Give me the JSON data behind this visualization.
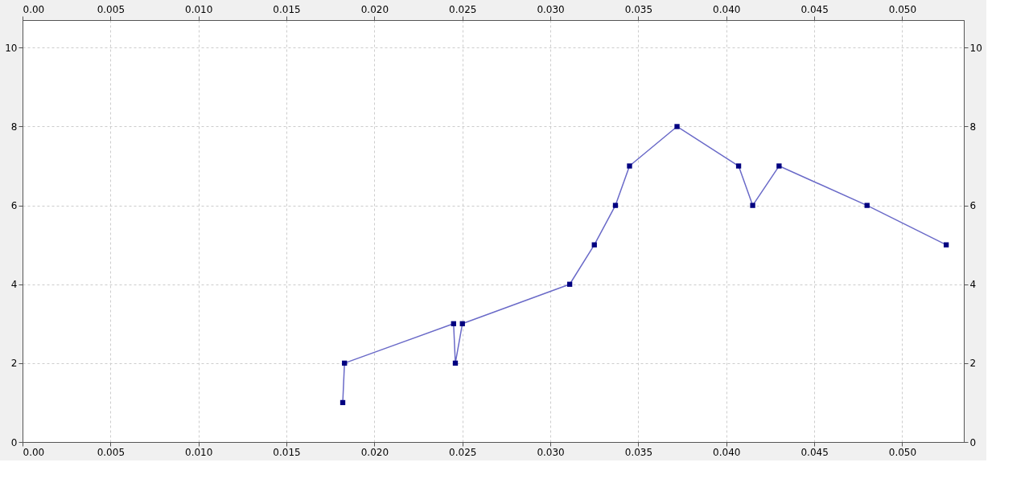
{
  "chart_data": {
    "type": "line",
    "x": [
      0.0182,
      0.0183,
      0.0245,
      0.0246,
      0.025,
      0.0311,
      0.0325,
      0.0337,
      0.0345,
      0.0372,
      0.0407,
      0.0415,
      0.043,
      0.048,
      0.0525
    ],
    "series": [
      {
        "color": "#6a6ac8",
        "values": [
          1,
          2,
          3,
          2,
          3,
          4,
          5,
          6,
          7,
          8,
          7,
          6,
          7,
          6,
          5
        ]
      }
    ],
    "xlim": [
      0,
      0.0535
    ],
    "ylim": [
      0,
      10.7
    ],
    "xticks": [
      {
        "value": 0,
        "label": "0.00"
      },
      {
        "value": 0.005,
        "label": "0.005"
      },
      {
        "value": 0.01,
        "label": "0.010"
      },
      {
        "value": 0.015,
        "label": "0.015"
      },
      {
        "value": 0.02,
        "label": "0.020"
      },
      {
        "value": 0.025,
        "label": "0.025"
      },
      {
        "value": 0.03,
        "label": "0.030"
      },
      {
        "value": 0.035,
        "label": "0.035"
      },
      {
        "value": 0.04,
        "label": "0.040"
      },
      {
        "value": 0.045,
        "label": "0.045"
      },
      {
        "value": 0.05,
        "label": "0.050"
      }
    ],
    "x2lim": [
      0,
      0.0535
    ],
    "x2ticks": [
      {
        "value": 0,
        "label": "0.00"
      },
      {
        "value": 0.005,
        "label": "0.005"
      },
      {
        "value": 0.01,
        "label": "0.010"
      },
      {
        "value": 0.015,
        "label": "0.015"
      },
      {
        "value": 0.02,
        "label": "0.020"
      },
      {
        "value": 0.025,
        "label": "0.025"
      },
      {
        "value": 0.03,
        "label": "0.030"
      },
      {
        "value": 0.035,
        "label": "0.035"
      },
      {
        "value": 0.04,
        "label": "0.040"
      },
      {
        "value": 0.045,
        "label": "0.045"
      },
      {
        "value": 0.05,
        "label": "0.050"
      }
    ],
    "yticks": [
      0,
      2,
      4,
      6,
      8,
      10
    ],
    "y2lim": [
      0,
      10.7
    ],
    "y2ticks": [
      0,
      2,
      4,
      6,
      8,
      10
    ],
    "grid": true,
    "marker": "square",
    "line_style": "solid"
  }
}
